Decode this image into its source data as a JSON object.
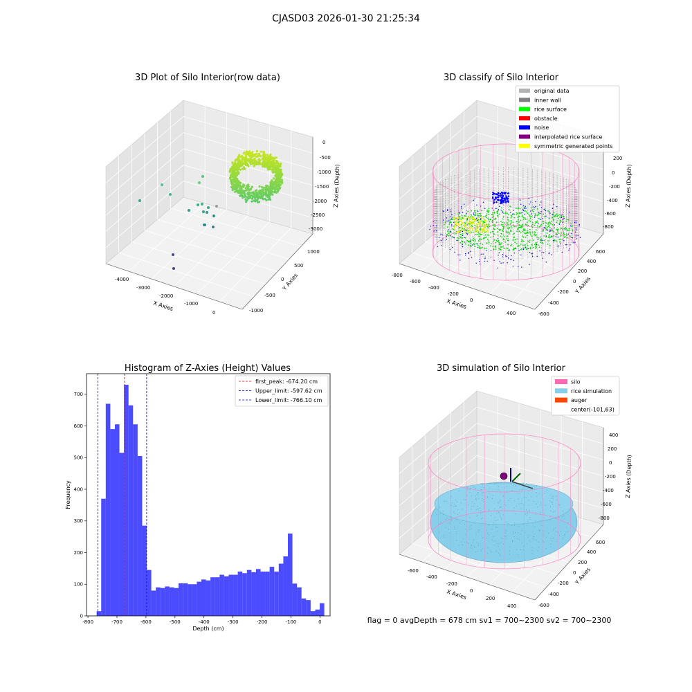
{
  "figure": {
    "suptitle": "CJASD03 2026-01-30 21:25:34",
    "footer": "flag = 0     avgDepth = 678 cm  sv1 = 700~2300  sv2 = 700~2300"
  },
  "panel_raw": {
    "title": "3D Plot of Silo Interior(row data)",
    "xlabel": "X Axies",
    "ylabel": "Y Axies",
    "zlabel": "Z Axies (Depth)",
    "xticks": [
      "-4000",
      "-3000",
      "-2000",
      "-1000",
      "0"
    ],
    "yticks": [
      "-1000",
      "-500",
      "0",
      "500",
      "1000"
    ],
    "zticks": [
      "0",
      "-500",
      "-1000",
      "-1500",
      "-2000",
      "-2500",
      "-3000"
    ]
  },
  "panel_class": {
    "title": "3D classify of Silo Interior",
    "xlabel": "X Axies",
    "ylabel": "Y Axies",
    "zlabel": "Z Axies (Depth)",
    "xticks": [
      "-800",
      "-600",
      "-400",
      "-200",
      "0",
      "200",
      "400"
    ],
    "yticks": [
      "-600",
      "-400",
      "-200",
      "0",
      "200",
      "400",
      "600"
    ],
    "zticks": [
      "200",
      "0",
      "-200",
      "-400",
      "-600",
      "-800"
    ],
    "legend": [
      {
        "label": "original data",
        "color": "#b3b3b3"
      },
      {
        "label": "inner wall",
        "color": "#808080"
      },
      {
        "label": "rice surface",
        "color": "#00ff00"
      },
      {
        "label": "obstacle",
        "color": "#ff0000"
      },
      {
        "label": "noise",
        "color": "#0000ff"
      },
      {
        "label": "interpolated rice surface",
        "color": "#800080"
      },
      {
        "label": "symmetric generated points",
        "color": "#ffff00"
      }
    ]
  },
  "panel_sim": {
    "title": "3D simulation of Silo Interior",
    "xlabel": "X Axies",
    "ylabel": "Y Axies",
    "zlabel": "Z Axies (Depth)",
    "xticks": [
      "-600",
      "-400",
      "-200",
      "0",
      "200",
      "400"
    ],
    "yticks": [
      "-600",
      "-400",
      "-200",
      "0",
      "200",
      "400",
      "600"
    ],
    "zticks": [
      "400",
      "200",
      "0",
      "-200",
      "-400",
      "-600",
      "-800"
    ],
    "legend": [
      {
        "label": "silo",
        "color": "#ff69b4"
      },
      {
        "label": "rice simulation",
        "color": "#87ceeb"
      },
      {
        "label": "auger",
        "color": "#ff4500"
      },
      {
        "label": "center(-101,63)",
        "color": ""
      }
    ]
  },
  "chart_data": [
    {
      "type": "bar",
      "title": "Histogram of Z-Axies (Height) Values",
      "xlabel": "Depth (cm)",
      "ylabel": "Frequency",
      "xlim": [
        -805,
        35
      ],
      "ylim": [
        0,
        765
      ],
      "xticks": [
        -800,
        -700,
        -600,
        -500,
        -400,
        -300,
        -200,
        -100,
        0
      ],
      "yticks": [
        0,
        100,
        200,
        300,
        400,
        500,
        600,
        700
      ],
      "bin_start": -770,
      "bin_width": 15.7,
      "counts": [
        15,
        370,
        670,
        590,
        605,
        515,
        730,
        665,
        605,
        505,
        285,
        145,
        80,
        90,
        88,
        93,
        90,
        88,
        103,
        103,
        100,
        100,
        108,
        115,
        112,
        122,
        122,
        130,
        125,
        130,
        130,
        140,
        135,
        145,
        138,
        148,
        140,
        140,
        155,
        140,
        165,
        188,
        260,
        102,
        90,
        55,
        50,
        15,
        20,
        40
      ],
      "bar_color": "#0000ff",
      "vlines": [
        {
          "label": "first_peak: -674.20 cm",
          "value": -674.2,
          "color": "#ff0000"
        },
        {
          "label": "Upper_limit: -597.62 cm",
          "value": -597.62,
          "color": "#0000ff"
        },
        {
          "label": "Lower_limit: -766.10 cm",
          "value": -766.1,
          "color": "#0000ff"
        }
      ],
      "legend_position": "upper right"
    }
  ]
}
